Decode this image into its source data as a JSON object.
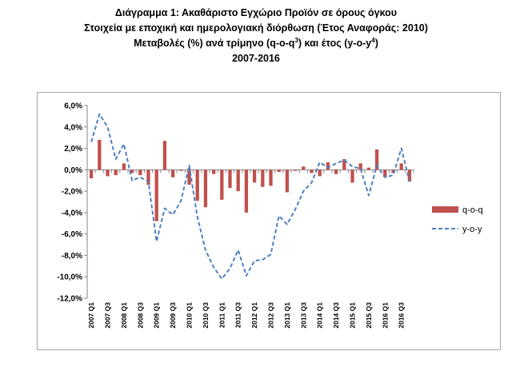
{
  "title_lines": {
    "line1": "Διάγραμμα 1: Ακαθάριστο Εγχώριο Προϊόν σε όρους όγκου",
    "line2": "Στοιχεία με εποχική και ημερολογιακή διόρθωση (Έτος Αναφοράς: 2010)",
    "line3_a": "Μεταβολές (%) ανά τρίμηνο (q-o-q",
    "line3_sup1": "3",
    "line3_b": ") και έτος (y-o-y",
    "line3_sup2": "4",
    "line3_c": ")",
    "line4": "2007-2016"
  },
  "chart_data": {
    "type": "bar+line",
    "title": "Διάγραμμα 1: Ακαθάριστο Εγχώριο Προϊόν σε όρους όγκου",
    "categories": [
      "2007 Q1",
      "2007 Q2",
      "2007 Q3",
      "2007 Q4",
      "2008 Q1",
      "2008 Q2",
      "2008 Q3",
      "2008 Q4",
      "2009 Q1",
      "2009 Q2",
      "2009 Q3",
      "2009 Q4",
      "2010 Q1",
      "2010 Q2",
      "2010 Q3",
      "2010 Q4",
      "2011 Q1",
      "2011 Q2",
      "2011 Q3",
      "2011 Q4",
      "2012 Q1",
      "2012 Q2",
      "2012 Q3",
      "2012 Q4",
      "2013 Q1",
      "2013 Q2",
      "2013 Q3",
      "2013 Q4",
      "2014 Q1",
      "2014 Q2",
      "2014 Q3",
      "2014 Q4",
      "2015 Q1",
      "2015 Q2",
      "2015 Q3",
      "2015 Q4",
      "2016 Q1",
      "2016 Q2",
      "2016 Q3",
      "2016 Q4"
    ],
    "x_tick_labels": [
      "2007 Q1",
      "2007 Q3",
      "2008 Q1",
      "2008 Q3",
      "2009 Q1",
      "2009 Q3",
      "2010 Q1",
      "2010 Q3",
      "2011 Q1",
      "2011 Q3",
      "2012 Q1",
      "2012 Q3",
      "2013 Q1",
      "2013 Q3",
      "2014 Q1",
      "2014 Q3",
      "2015 Q1",
      "2015 Q3",
      "2016 Q1",
      "2016 Q3"
    ],
    "series": [
      {
        "name": "q-o-q",
        "kind": "bar",
        "color": "#c0504d",
        "values": [
          -0.8,
          2.8,
          -0.6,
          -0.5,
          0.6,
          -0.3,
          -0.5,
          -1.4,
          -4.8,
          2.7,
          -0.7,
          -0.1,
          -1.4,
          -2.9,
          -3.5,
          -0.4,
          -2.8,
          -1.7,
          -2.0,
          -4.0,
          -1.2,
          -1.6,
          -1.5,
          -0.2,
          -2.1,
          -0.1,
          0.3,
          -0.3,
          -0.6,
          0.7,
          -0.4,
          1.0,
          -1.2,
          0.6,
          0.2,
          1.9,
          -0.7,
          -0.3,
          0.6,
          -1.1
        ]
      },
      {
        "name": "y-o-y",
        "kind": "line",
        "color": "#4f81bd",
        "dash": "dashed",
        "values": [
          2.6,
          5.2,
          4.0,
          1.0,
          2.4,
          -1.0,
          -0.7,
          -1.1,
          -6.7,
          -3.6,
          -4.2,
          -2.9,
          0.4,
          -4.4,
          -7.5,
          -9.1,
          -10.2,
          -9.2,
          -7.5,
          -9.9,
          -8.5,
          -8.4,
          -7.9,
          -4.3,
          -5.1,
          -3.7,
          -2.0,
          -1.2,
          0.7,
          0.2,
          0.6,
          0.9,
          0.3,
          0.1,
          -2.4,
          0.4,
          -0.7,
          -0.5,
          2.0,
          -1.1
        ]
      }
    ],
    "ylim": [
      -12,
      6
    ],
    "y_ticks": [
      6,
      4,
      2,
      0,
      -2,
      -4,
      -6,
      -8,
      -10,
      -12
    ],
    "y_tick_labels": [
      "6,0%",
      "4,0%",
      "2,0%",
      "0,0%",
      "-2,0%",
      "-4,0%",
      "-6,0%",
      "-8,0%",
      "-10,0%",
      "-12,0%"
    ],
    "xlabel": "",
    "ylabel": "",
    "grid": false,
    "legend_position": "right"
  }
}
